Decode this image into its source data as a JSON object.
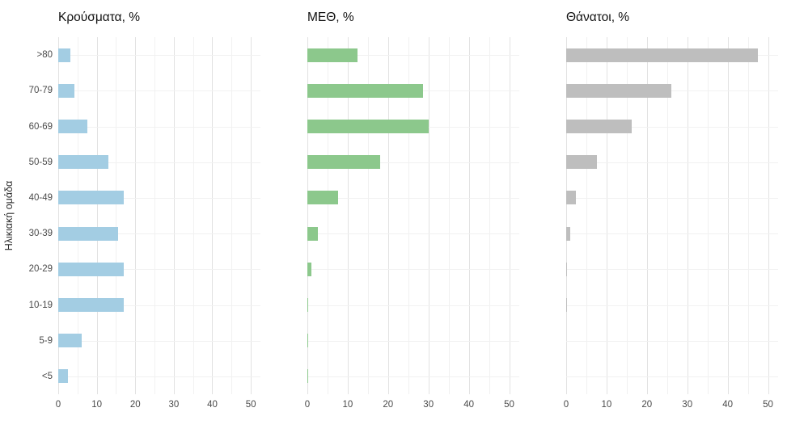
{
  "y_axis_title": "Ηλικιακή ομάδα",
  "chart_data": [
    {
      "type": "bar",
      "orientation": "horizontal",
      "title": "Κρούσματα, %",
      "color": "#a3cde3",
      "categories": [
        ">80",
        "70-79",
        "60-69",
        "50-59",
        "40-49",
        "30-39",
        "20-29",
        "10-19",
        "5-9",
        "<5"
      ],
      "values": [
        3.2,
        4.3,
        7.5,
        13,
        17,
        15.5,
        17,
        17,
        6,
        2.5
      ],
      "xlim": [
        0,
        52.5
      ],
      "x_ticks": [
        0,
        10,
        20,
        30,
        40,
        50
      ],
      "grid": "on",
      "legend": "none"
    },
    {
      "type": "bar",
      "orientation": "horizontal",
      "title": "ΜΕΘ, %",
      "color": "#8cc88c",
      "categories": [
        ">80",
        "70-79",
        "60-69",
        "50-59",
        "40-49",
        "30-39",
        "20-29",
        "10-19",
        "5-9",
        "<5"
      ],
      "values": [
        12.5,
        28.7,
        30,
        18,
        7.7,
        2.7,
        1,
        0.25,
        0.15,
        0.25
      ],
      "xlim": [
        0,
        52.5
      ],
      "x_ticks": [
        0,
        10,
        20,
        30,
        40,
        50
      ],
      "grid": "on",
      "legend": "none"
    },
    {
      "type": "bar",
      "orientation": "horizontal",
      "title": "Θάνατοι, %",
      "color": "#bebebe",
      "categories": [
        ">80",
        "70-79",
        "60-69",
        "50-59",
        "40-49",
        "30-39",
        "20-29",
        "10-19",
        "5-9",
        "<5"
      ],
      "values": [
        47.5,
        26,
        16.3,
        7.7,
        2.5,
        1,
        0.25,
        0.2,
        0,
        0
      ],
      "xlim": [
        0,
        52.5
      ],
      "x_ticks": [
        0,
        10,
        20,
        30,
        40,
        50
      ],
      "grid": "on",
      "legend": "none"
    }
  ]
}
